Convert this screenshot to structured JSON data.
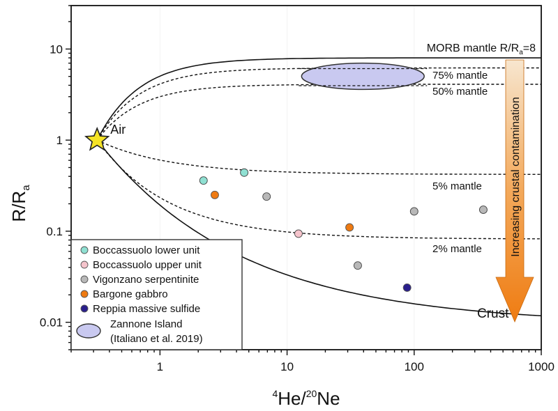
{
  "chart_data": {
    "type": "scatter",
    "title": "",
    "xlabel": {
      "sup1": "4",
      "main1": "He/",
      "sup2": "20",
      "main2": "Ne"
    },
    "ylabel": {
      "main": "R/R",
      "sub": "a"
    },
    "x_scale": "log",
    "y_scale": "log",
    "xlim": [
      0.2,
      1000
    ],
    "ylim": [
      0.005,
      30
    ],
    "x_ticks": [
      {
        "value": 1,
        "label": "1"
      },
      {
        "value": 10,
        "label": "10"
      },
      {
        "value": 100,
        "label": "100"
      },
      {
        "value": 1000,
        "label": "1000"
      }
    ],
    "y_ticks": [
      {
        "value": 0.01,
        "label": "0.01"
      },
      {
        "value": 0.1,
        "label": "0.1"
      },
      {
        "value": 1,
        "label": "1"
      },
      {
        "value": 10,
        "label": "10"
      }
    ],
    "air_point": {
      "x": 0.32,
      "y": 1.0,
      "label": "Air",
      "color": "#f5e326"
    },
    "mixing_curves": [
      {
        "name": "MORB mantle",
        "label": "MORB mantle R/R",
        "label_sub": "a",
        "label_suffix": "=8",
        "style": "solid",
        "end_y": 8
      },
      {
        "name": "75% mantle",
        "label": "75% mantle",
        "style": "dashed",
        "end_y": 6.2
      },
      {
        "name": "50% mantle",
        "label": "50% mantle",
        "style": "dashed",
        "end_y": 4.1
      },
      {
        "name": "5% mantle",
        "label": "5% mantle",
        "style": "dashed",
        "end_y": 0.42
      },
      {
        "name": "2% mantle",
        "label": "2% mantle",
        "style": "dashed",
        "end_y": 0.082
      },
      {
        "name": "Crust",
        "label": "Crust",
        "style": "solid",
        "end_y": 0.0095
      }
    ],
    "arrow": {
      "label": "Increasing crustal contamination",
      "color": "#f08a1c"
    },
    "series": [
      {
        "name": "Boccassuolo lower unit",
        "color": "#8fe0d2",
        "points": [
          {
            "x": 2.2,
            "y": 0.36
          },
          {
            "x": 4.6,
            "y": 0.44
          }
        ]
      },
      {
        "name": "Boccassuolo upper unit",
        "color": "#f5c4cc",
        "points": [
          {
            "x": 12.3,
            "y": 0.094
          }
        ]
      },
      {
        "name": "Vigonzano serpentinite",
        "color": "#b8b8b8",
        "points": [
          {
            "x": 6.9,
            "y": 0.24
          },
          {
            "x": 36,
            "y": 0.042
          },
          {
            "x": 100,
            "y": 0.165
          },
          {
            "x": 350,
            "y": 0.172
          }
        ]
      },
      {
        "name": "Bargone gabbro",
        "color": "#ee7a12",
        "points": [
          {
            "x": 2.7,
            "y": 0.25
          },
          {
            "x": 31,
            "y": 0.11
          }
        ]
      },
      {
        "name": "Reppia massive sulfide",
        "color": "#2a1f8c",
        "points": [
          {
            "x": 88,
            "y": 0.024
          }
        ]
      }
    ],
    "zannone_ellipse": {
      "name": "Zannone Island",
      "citation": "(Italiano et al. 2019)",
      "x_range": [
        13,
        120
      ],
      "y_range": [
        3.6,
        7.0
      ],
      "color": "#c9c9f0"
    },
    "legend": {
      "position": "bottom-left"
    },
    "grid": false
  }
}
